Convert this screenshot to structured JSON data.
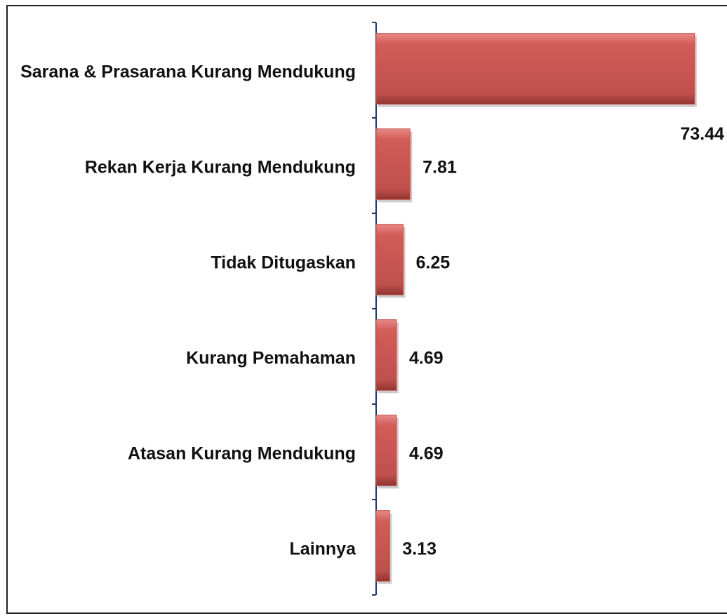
{
  "chart_data": {
    "type": "bar",
    "orientation": "horizontal",
    "categories": [
      "Sarana & Prasarana Kurang Mendukung",
      "Rekan Kerja Kurang Mendukung",
      "Tidak Ditugaskan",
      "Kurang Pemahaman",
      "Atasan Kurang Mendukung",
      "Lainnya"
    ],
    "values": [
      73.44,
      7.81,
      6.25,
      4.69,
      4.69,
      3.13
    ],
    "color": "#c0504d"
  }
}
